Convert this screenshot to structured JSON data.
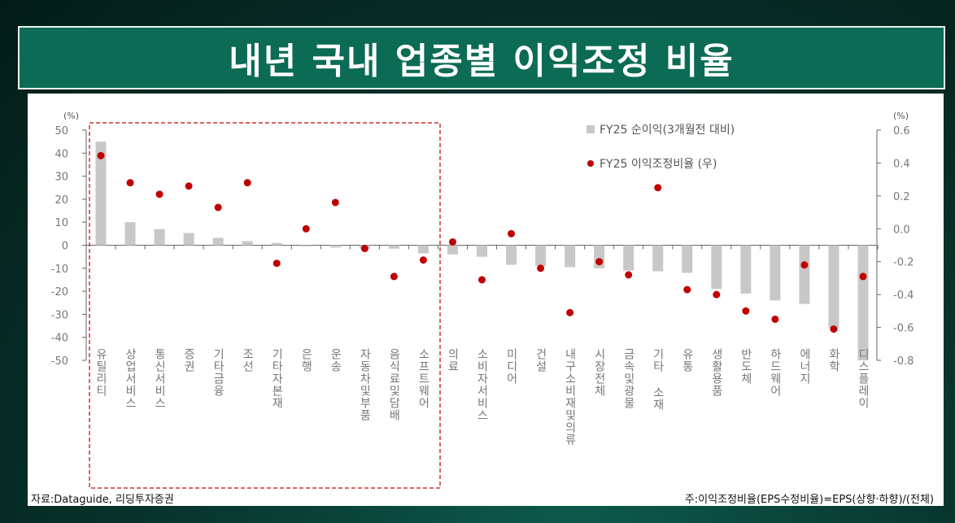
{
  "title": "내년 국내 업종별 이익조정 비율",
  "source": "자료:Dataguide,  리딩투자증권",
  "note": "주:이익조정비율(EPS수정비율)=EPS(상향·하향)/(전체)",
  "colors": {
    "banner": "#0c6b55",
    "bar": "#c8c8c8",
    "dot": "#c00000",
    "highlight_box": "#d03030"
  },
  "chart_data": {
    "type": "bar+scatter",
    "title": "내년 국내 업종별 이익조정 비율",
    "left_unit": "(%)",
    "right_unit": "(%)",
    "left_ylim": [
      -50,
      50
    ],
    "right_ylim": [
      -0.8,
      0.6
    ],
    "left_ticks": [
      50,
      40,
      30,
      20,
      10,
      0,
      -10,
      -20,
      -30,
      -40,
      -50
    ],
    "right_ticks": [
      0.6,
      0.4,
      0.2,
      0.0,
      -0.2,
      -0.4,
      -0.6,
      -0.8
    ],
    "legend_placement": "top-right",
    "categories": [
      "유틸리티",
      "상업서비스",
      "통신서비스",
      "증권",
      "기타금융",
      "조선",
      "기타자본재",
      "은행",
      "운송",
      "자동차및부품",
      "음식료및담배",
      "소프트웨어",
      "의료",
      "소비자서비스",
      "미디어",
      "건설",
      "내구소비재및의류",
      "시장전체",
      "금속및광물",
      "기타 소재",
      "유통",
      "생활용품",
      "반도체",
      "하드웨어",
      "에너지",
      "화학",
      "디스플레이"
    ],
    "series": [
      {
        "name": "FY25 순이익(3개월전 대비)",
        "type": "bar",
        "axis": "left",
        "values": [
          45,
          10,
          7,
          5.3,
          3.2,
          1.8,
          1,
          -0.5,
          -1,
          -1.5,
          -1.5,
          -3.5,
          -4,
          -5,
          -8.5,
          -9,
          -9.5,
          -10,
          -11,
          -11.3,
          -12,
          -19,
          -21,
          -24,
          -25.5,
          -36,
          -50
        ]
      },
      {
        "name": "FY25 이익조정비율 (우)",
        "type": "scatter",
        "axis": "right",
        "values": [
          0.445,
          0.28,
          0.21,
          0.26,
          0.13,
          0.28,
          -0.21,
          0.0,
          0.16,
          -0.12,
          -0.29,
          -0.19,
          -0.08,
          -0.31,
          -0.03,
          -0.24,
          -0.51,
          -0.2,
          -0.28,
          0.25,
          -0.37,
          -0.4,
          -0.5,
          -0.55,
          -0.22,
          -0.61,
          -0.29
        ]
      }
    ],
    "highlighted_range": [
      "유틸리티",
      "소프트웨어"
    ]
  }
}
